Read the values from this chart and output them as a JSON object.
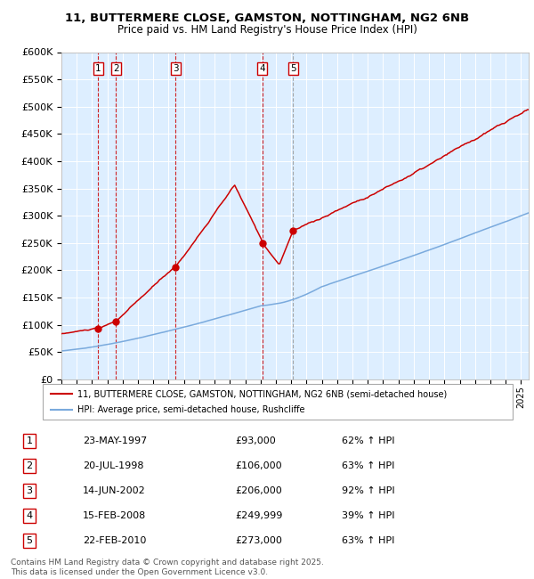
{
  "title_line1": "11, BUTTERMERE CLOSE, GAMSTON, NOTTINGHAM, NG2 6NB",
  "title_line2": "Price paid vs. HM Land Registry's House Price Index (HPI)",
  "ylabel_ticks": [
    "£0",
    "£50K",
    "£100K",
    "£150K",
    "£200K",
    "£250K",
    "£300K",
    "£350K",
    "£400K",
    "£450K",
    "£500K",
    "£550K",
    "£600K"
  ],
  "ytick_values": [
    0,
    50000,
    100000,
    150000,
    200000,
    250000,
    300000,
    350000,
    400000,
    450000,
    500000,
    550000,
    600000
  ],
  "sale_prices": [
    93000,
    106000,
    206000,
    249999,
    273000
  ],
  "sale_years": [
    1997.39,
    1998.55,
    2002.45,
    2008.12,
    2010.13
  ],
  "sale_labels": [
    "1",
    "2",
    "3",
    "4",
    "5"
  ],
  "sale_hpi_pct": [
    "62% ↑ HPI",
    "63% ↑ HPI",
    "92% ↑ HPI",
    "39% ↑ HPI",
    "63% ↑ HPI"
  ],
  "sale_formatted": [
    "£93,000",
    "£106,000",
    "£206,000",
    "£249,999",
    "£273,000"
  ],
  "sale_dates_fmt": [
    "23-MAY-1997",
    "20-JUL-1998",
    "14-JUN-2002",
    "15-FEB-2008",
    "22-FEB-2010"
  ],
  "red_line_color": "#cc0000",
  "blue_line_color": "#7aaadd",
  "vline_colors": [
    "#cc0000",
    "#cc0000",
    "#cc0000",
    "#cc0000",
    "#999999"
  ],
  "plot_bg": "#ddeeff",
  "legend_label_red": "11, BUTTERMERE CLOSE, GAMSTON, NOTTINGHAM, NG2 6NB (semi-detached house)",
  "legend_label_blue": "HPI: Average price, semi-detached house, Rushcliffe",
  "footnote": "Contains HM Land Registry data © Crown copyright and database right 2025.\nThis data is licensed under the Open Government Licence v3.0.",
  "xmin": 1995.0,
  "xmax": 2025.5,
  "ymin": 0,
  "ymax": 600000,
  "table_data": [
    [
      "1",
      "23-MAY-1997",
      "£93,000",
      "62% ↑ HPI"
    ],
    [
      "2",
      "20-JUL-1998",
      "£106,000",
      "63% ↑ HPI"
    ],
    [
      "3",
      "14-JUN-2002",
      "£206,000",
      "92% ↑ HPI"
    ],
    [
      "4",
      "15-FEB-2008",
      "£249,999",
      "39% ↑ HPI"
    ],
    [
      "5",
      "22-FEB-2010",
      "£273,000",
      "63% ↑ HPI"
    ]
  ]
}
